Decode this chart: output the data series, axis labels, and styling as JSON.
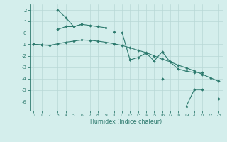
{
  "x": [
    0,
    1,
    2,
    3,
    4,
    5,
    6,
    7,
    8,
    9,
    10,
    11,
    12,
    13,
    14,
    15,
    16,
    17,
    18,
    19,
    20,
    21,
    22,
    23
  ],
  "line1": [
    -1.0,
    -1.05,
    null,
    0.3,
    0.55,
    0.55,
    0.75,
    0.65,
    0.55,
    0.45,
    null,
    0.05,
    -2.35,
    -2.15,
    -1.75,
    -2.45,
    -1.65,
    -2.55,
    -3.15,
    -3.35,
    -3.45,
    -3.45,
    null,
    null
  ],
  "line2": [
    null,
    null,
    null,
    2.0,
    1.35,
    0.55,
    0.75,
    null,
    null,
    null,
    0.1,
    null,
    -2.35,
    null,
    null,
    null,
    -4.0,
    null,
    null,
    -6.4,
    -4.95,
    -4.95,
    null,
    -5.75
  ],
  "line3": [
    -1.0,
    -1.05,
    -1.1,
    -0.95,
    -0.82,
    -0.72,
    -0.62,
    -0.65,
    -0.72,
    -0.82,
    -0.95,
    -1.1,
    -1.3,
    -1.52,
    -1.72,
    -2.0,
    -2.3,
    -2.52,
    -2.82,
    -3.05,
    -3.32,
    -3.62,
    -3.92,
    -4.22
  ],
  "xlabel": "Humidex (Indice chaleur)",
  "ylim": [
    -6.8,
    2.5
  ],
  "xlim": [
    -0.5,
    23.5
  ],
  "yticks": [
    2,
    1,
    0,
    -1,
    -2,
    -3,
    -4,
    -5,
    -6
  ],
  "xticks": [
    0,
    1,
    2,
    3,
    4,
    5,
    6,
    7,
    8,
    9,
    10,
    11,
    12,
    13,
    14,
    15,
    16,
    17,
    18,
    19,
    20,
    21,
    22,
    23
  ],
  "line_color": "#2d7a6e",
  "bg_color": "#d4eeec",
  "grid_color": "#b8d8d6"
}
